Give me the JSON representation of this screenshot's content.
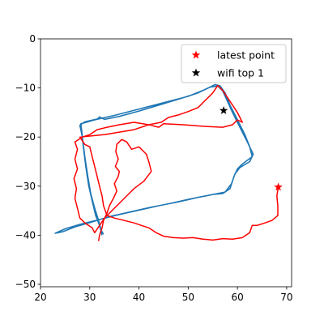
{
  "chart_data": {
    "type": "scatter",
    "title": "",
    "xlabel": "",
    "ylabel": "",
    "xlim": [
      20,
      71
    ],
    "ylim": [
      -50.5,
      0
    ],
    "xticks": [
      20,
      30,
      40,
      50,
      60,
      70
    ],
    "yticks": [
      0,
      -10,
      -20,
      -30,
      -40,
      -50
    ],
    "grid": false,
    "legend_position": "upper-right",
    "legend": [
      {
        "label": "latest point",
        "marker": "star",
        "color": "#ff0000"
      },
      {
        "label": "wifi top 1",
        "marker": "star",
        "color": "#000000"
      }
    ],
    "series": [
      {
        "type": "line",
        "color": "#1f77b4",
        "points": [
          [
            32.5,
            -40.0
          ],
          [
            32.0,
            -38.0
          ],
          [
            31.2,
            -36.0
          ],
          [
            30.5,
            -33.0
          ],
          [
            29.8,
            -30.0
          ],
          [
            29.2,
            -26.0
          ],
          [
            28.7,
            -22.0
          ],
          [
            28.4,
            -19.0
          ],
          [
            28.2,
            -17.3
          ],
          [
            31.0,
            -16.5
          ],
          [
            35.0,
            -15.6
          ],
          [
            40.0,
            -14.3
          ],
          [
            45.0,
            -13.0
          ],
          [
            50.0,
            -11.7
          ],
          [
            53.0,
            -10.5
          ],
          [
            55.5,
            -9.3
          ],
          [
            56.5,
            -9.6
          ],
          [
            57.5,
            -11.0
          ],
          [
            58.5,
            -13.5
          ],
          [
            59.5,
            -15.5
          ],
          [
            60.5,
            -17.5
          ],
          [
            61.5,
            -19.5
          ],
          [
            62.5,
            -22.0
          ],
          [
            63.0,
            -24.0
          ],
          [
            61.0,
            -25.5
          ],
          [
            60.0,
            -26.5
          ],
          [
            59.3,
            -28.0
          ],
          [
            58.5,
            -30.5
          ],
          [
            57.0,
            -31.5
          ],
          [
            55.0,
            -31.7
          ],
          [
            52.0,
            -32.3
          ],
          [
            48.0,
            -33.2
          ],
          [
            44.0,
            -34.0
          ],
          [
            40.0,
            -34.9
          ],
          [
            36.0,
            -35.8
          ],
          [
            32.0,
            -36.8
          ],
          [
            28.0,
            -37.8
          ],
          [
            25.0,
            -38.7
          ],
          [
            23.0,
            -39.6
          ],
          [
            24.5,
            -39.3
          ],
          [
            27.0,
            -38.3
          ],
          [
            30.5,
            -37.3
          ],
          [
            34.0,
            -36.2
          ],
          [
            38.0,
            -35.3
          ],
          [
            42.0,
            -34.4
          ],
          [
            46.0,
            -33.6
          ],
          [
            50.0,
            -32.7
          ],
          [
            54.0,
            -31.9
          ],
          [
            57.5,
            -31.2
          ],
          [
            58.8,
            -29.5
          ],
          [
            59.5,
            -27.5
          ],
          [
            60.5,
            -26.2
          ],
          [
            62.5,
            -25.0
          ],
          [
            63.2,
            -23.5
          ],
          [
            62.0,
            -21.0
          ],
          [
            61.0,
            -19.0
          ],
          [
            60.0,
            -17.0
          ],
          [
            59.0,
            -15.0
          ],
          [
            58.0,
            -12.8
          ],
          [
            57.0,
            -10.6
          ],
          [
            56.0,
            -9.6
          ],
          [
            54.5,
            -9.8
          ],
          [
            52.0,
            -11.0
          ],
          [
            48.0,
            -12.3
          ],
          [
            44.0,
            -13.5
          ],
          [
            40.0,
            -14.7
          ],
          [
            36.0,
            -15.8
          ],
          [
            33.0,
            -16.4
          ],
          [
            32.0,
            -15.9
          ],
          [
            31.6,
            -16.3
          ],
          [
            29.0,
            -16.9
          ],
          [
            28.0,
            -17.6
          ],
          [
            28.5,
            -20.0
          ],
          [
            29.0,
            -24.0
          ],
          [
            29.6,
            -28.0
          ],
          [
            30.2,
            -31.5
          ],
          [
            31.0,
            -34.5
          ],
          [
            31.8,
            -37.0
          ],
          [
            32.3,
            -39.0
          ],
          [
            32.8,
            -39.8
          ]
        ]
      },
      {
        "type": "line",
        "color": "#ff0000",
        "points": [
          [
            31.8,
            -41.2
          ],
          [
            32.0,
            -40.0
          ],
          [
            32.5,
            -38.5
          ],
          [
            32.8,
            -37.0
          ],
          [
            33.5,
            -35.5
          ],
          [
            34.0,
            -34.0
          ],
          [
            34.8,
            -32.5
          ],
          [
            35.5,
            -31.0
          ],
          [
            35.0,
            -29.5
          ],
          [
            35.8,
            -28.0
          ],
          [
            36.0,
            -27.0
          ],
          [
            35.2,
            -26.0
          ],
          [
            35.8,
            -24.5
          ],
          [
            35.3,
            -23.0
          ],
          [
            35.5,
            -21.5
          ],
          [
            36.5,
            -20.5
          ],
          [
            37.5,
            -21.0
          ],
          [
            38.5,
            -22.5
          ],
          [
            40.0,
            -22.0
          ],
          [
            41.5,
            -23.5
          ],
          [
            42.0,
            -25.0
          ],
          [
            42.5,
            -27.0
          ],
          [
            41.0,
            -29.0
          ],
          [
            39.0,
            -30.5
          ],
          [
            37.5,
            -32.0
          ],
          [
            36.0,
            -33.5
          ],
          [
            34.5,
            -35.0
          ],
          [
            33.0,
            -36.5
          ],
          [
            32.0,
            -38.0
          ],
          [
            31.0,
            -39.5
          ],
          [
            30.5,
            -38.5
          ],
          [
            29.0,
            -37.5
          ],
          [
            28.0,
            -36.5
          ],
          [
            27.5,
            -34.5
          ],
          [
            27.0,
            -32.5
          ],
          [
            27.3,
            -30.5
          ],
          [
            26.8,
            -28.5
          ],
          [
            27.5,
            -26.5
          ],
          [
            27.0,
            -24.5
          ],
          [
            27.5,
            -22.5
          ],
          [
            27.0,
            -21.0
          ],
          [
            28.5,
            -20.0
          ],
          [
            30.0,
            -19.5
          ],
          [
            31.5,
            -18.5
          ],
          [
            33.5,
            -18.0
          ],
          [
            36.0,
            -17.5
          ],
          [
            39.0,
            -17.0
          ],
          [
            42.0,
            -17.5
          ],
          [
            44.5,
            -17.0
          ],
          [
            46.0,
            -16.0
          ],
          [
            48.0,
            -15.5
          ],
          [
            50.0,
            -14.8
          ],
          [
            52.0,
            -14.0
          ],
          [
            53.5,
            -12.5
          ],
          [
            55.0,
            -11.0
          ],
          [
            56.0,
            -9.5
          ],
          [
            57.0,
            -10.5
          ],
          [
            58.0,
            -12.0
          ],
          [
            59.0,
            -13.5
          ],
          [
            60.0,
            -15.0
          ],
          [
            61.0,
            -17.0
          ],
          [
            60.0,
            -16.5
          ],
          [
            59.0,
            -17.5
          ],
          [
            57.0,
            -18.0
          ],
          [
            53.0,
            -17.8
          ],
          [
            49.0,
            -17.5
          ],
          [
            45.0,
            -17.3
          ],
          [
            44.0,
            -18.0
          ],
          [
            42.0,
            -17.5
          ],
          [
            39.0,
            -18.5
          ],
          [
            36.0,
            -19.0
          ],
          [
            33.0,
            -19.5
          ],
          [
            30.0,
            -19.8
          ],
          [
            28.0,
            -20.0
          ],
          [
            29.0,
            -21.5
          ],
          [
            30.0,
            -22.0
          ],
          [
            30.5,
            -24.0
          ],
          [
            31.0,
            -26.0
          ],
          [
            31.5,
            -28.0
          ],
          [
            32.0,
            -30.0
          ],
          [
            32.5,
            -32.0
          ],
          [
            32.8,
            -34.0
          ],
          [
            33.5,
            -36.0
          ],
          [
            35.0,
            -36.5
          ],
          [
            37.0,
            -37.0
          ],
          [
            39.0,
            -37.5
          ],
          [
            40.5,
            -38.0
          ],
          [
            42.0,
            -38.5
          ],
          [
            43.5,
            -39.5
          ],
          [
            45.0,
            -40.2
          ],
          [
            47.0,
            -40.5
          ],
          [
            49.0,
            -40.6
          ],
          [
            51.0,
            -40.5
          ],
          [
            53.0,
            -40.8
          ],
          [
            55.0,
            -41.0
          ],
          [
            57.0,
            -40.7
          ],
          [
            59.0,
            -40.8
          ],
          [
            61.0,
            -40.5
          ],
          [
            62.5,
            -39.5
          ],
          [
            63.0,
            -38.0
          ],
          [
            64.0,
            -38.0
          ],
          [
            65.0,
            -37.7
          ],
          [
            67.0,
            -37.0
          ],
          [
            68.2,
            -36.0
          ],
          [
            68.2,
            -34.0
          ],
          [
            68.0,
            -32.0
          ],
          [
            68.3,
            -30.2
          ]
        ]
      }
    ],
    "markers": [
      {
        "name": "latest point",
        "x": 68.3,
        "y": -30.2,
        "color": "#ff0000"
      },
      {
        "name": "wifi top 1",
        "x": 57.2,
        "y": -14.6,
        "color": "#000000"
      }
    ]
  }
}
